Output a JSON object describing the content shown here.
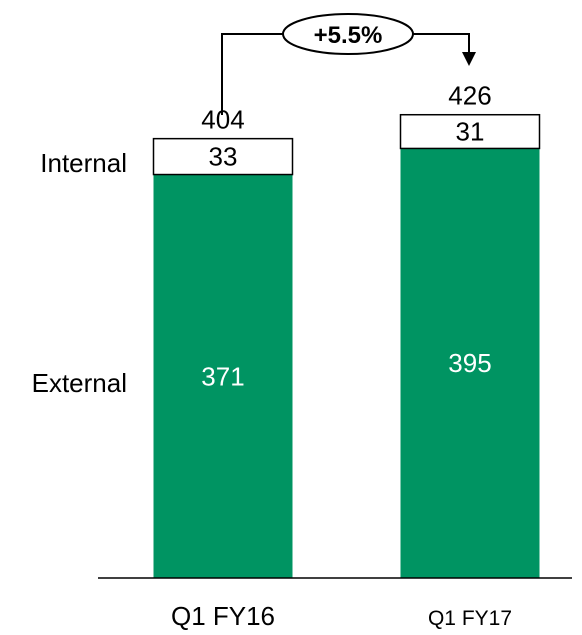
{
  "chart_data": {
    "type": "bar",
    "stacked": true,
    "categories": [
      "Q1 FY16",
      "Q1 FY17"
    ],
    "series": [
      {
        "name": "External",
        "values": [
          371,
          395
        ],
        "color": "#009462"
      },
      {
        "name": "Internal",
        "values": [
          33,
          31
        ],
        "color": "#ffffff"
      }
    ],
    "totals": [
      404,
      426
    ],
    "annotation": {
      "label": "+5.5%"
    },
    "legend_placement": "left",
    "grid": false
  }
}
